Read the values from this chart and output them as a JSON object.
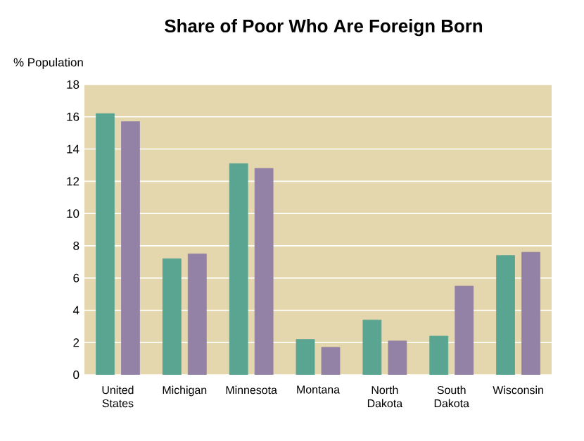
{
  "chart_data": {
    "type": "bar",
    "title": "Share of Poor Who Are Foreign Born",
    "ylabel": "%  Population",
    "categories": [
      "United States",
      "Michigan",
      "Minnesota",
      "Montana",
      "North Dakota",
      "South Dakota",
      "Wisconsin"
    ],
    "series": [
      {
        "color": "#5aa592",
        "values": [
          16.2,
          7.2,
          13.1,
          2.2,
          3.4,
          2.4,
          7.4
        ]
      },
      {
        "color": "#9381a6",
        "values": [
          15.7,
          7.5,
          12.8,
          1.7,
          2.1,
          5.5,
          7.6
        ]
      }
    ],
    "ylim": [
      0,
      18
    ],
    "yticks": [
      0,
      2,
      4,
      6,
      8,
      10,
      12,
      14,
      16,
      18
    ],
    "grid": "y"
  }
}
